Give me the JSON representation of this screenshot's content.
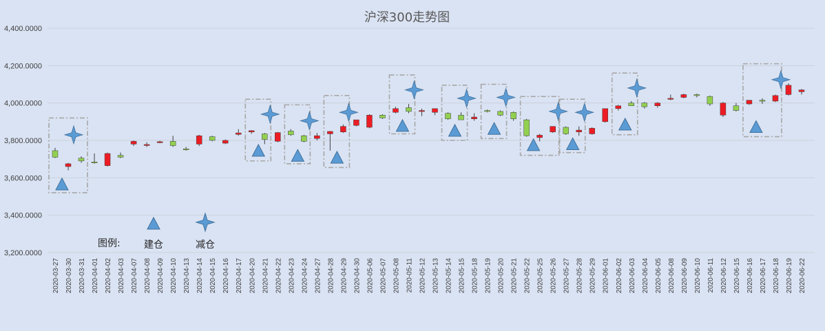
{
  "chart_data": {
    "type": "candlestick",
    "title": "沪深300走势图",
    "xlabel": "",
    "ylabel": "",
    "ylim": [
      3200,
      4400
    ],
    "yticks": [
      "3,200.0000",
      "3,400.0000",
      "3,600.0000",
      "3,800.0000",
      "4,000.0000",
      "4,200.0000",
      "4,400.0000"
    ],
    "grid": "horizontal",
    "colors": {
      "up": "#ed1c24",
      "down": "#92d050",
      "line": "#404040",
      "marker": "#5b9bd5",
      "box": "#a6a6a6"
    },
    "categories": [
      "2020-03-27",
      "2020-03-30",
      "2020-03-31",
      "2020-04-01",
      "2020-04-02",
      "2020-04-03",
      "2020-04-07",
      "2020-04-08",
      "2020-04-09",
      "2020-04-10",
      "2020-04-13",
      "2020-04-14",
      "2020-04-15",
      "2020-04-16",
      "2020-04-17",
      "2020-04-20",
      "2020-04-21",
      "2020-04-22",
      "2020-04-23",
      "2020-04-24",
      "2020-04-27",
      "2020-04-28",
      "2020-04-29",
      "2020-04-30",
      "2020-05-06",
      "2020-05-07",
      "2020-05-08",
      "2020-05-11",
      "2020-05-12",
      "2020-05-13",
      "2020-05-14",
      "2020-05-15",
      "2020-05-18",
      "2020-05-19",
      "2020-05-20",
      "2020-05-21",
      "2020-05-22",
      "2020-05-25",
      "2020-05-26",
      "2020-05-27",
      "2020-05-28",
      "2020-05-29",
      "2020-06-01",
      "2020-06-02",
      "2020-06-03",
      "2020-06-04",
      "2020-06-05",
      "2020-06-08",
      "2020-06-09",
      "2020-06-10",
      "2020-06-11",
      "2020-06-12",
      "2020-06-15",
      "2020-06-16",
      "2020-06-17",
      "2020-06-18",
      "2020-06-19",
      "2020-06-22"
    ],
    "ohlc": [
      [
        3745,
        3760,
        3705,
        3710
      ],
      [
        3660,
        3680,
        3640,
        3675
      ],
      [
        3705,
        3715,
        3680,
        3690
      ],
      [
        3685,
        3730,
        3675,
        3680
      ],
      [
        3665,
        3735,
        3660,
        3730
      ],
      [
        3720,
        3735,
        3705,
        3710
      ],
      [
        3780,
        3800,
        3770,
        3795
      ],
      [
        3775,
        3790,
        3765,
        3778
      ],
      [
        3790,
        3798,
        3785,
        3793
      ],
      [
        3795,
        3825,
        3765,
        3772
      ],
      [
        3755,
        3765,
        3745,
        3752
      ],
      [
        3780,
        3830,
        3770,
        3825
      ],
      [
        3820,
        3825,
        3795,
        3800
      ],
      [
        3785,
        3805,
        3780,
        3800
      ],
      [
        3832,
        3860,
        3825,
        3840
      ],
      [
        3845,
        3855,
        3835,
        3852
      ],
      [
        3835,
        3840,
        3780,
        3805
      ],
      [
        3795,
        3845,
        3790,
        3842
      ],
      [
        3850,
        3860,
        3825,
        3830
      ],
      [
        3825,
        3830,
        3790,
        3795
      ],
      [
        3810,
        3840,
        3800,
        3825
      ],
      [
        3835,
        3850,
        3745,
        3848
      ],
      [
        3845,
        3885,
        3840,
        3875
      ],
      [
        3880,
        3910,
        3875,
        3910
      ],
      [
        3870,
        3940,
        3865,
        3935
      ],
      [
        3935,
        3940,
        3915,
        3920
      ],
      [
        3950,
        3980,
        3945,
        3970
      ],
      [
        3975,
        3995,
        3945,
        3955
      ],
      [
        3955,
        3970,
        3930,
        3960
      ],
      [
        3950,
        3970,
        3935,
        3970
      ],
      [
        3945,
        3950,
        3910,
        3915
      ],
      [
        3935,
        3950,
        3910,
        3910
      ],
      [
        3915,
        3945,
        3905,
        3925
      ],
      [
        3960,
        3965,
        3950,
        3955
      ],
      [
        3955,
        3960,
        3930,
        3935
      ],
      [
        3950,
        3955,
        3905,
        3915
      ],
      [
        3910,
        3915,
        3820,
        3825
      ],
      [
        3815,
        3835,
        3795,
        3828
      ],
      [
        3845,
        3875,
        3840,
        3875
      ],
      [
        3870,
        3875,
        3830,
        3835
      ],
      [
        3845,
        3875,
        3825,
        3855
      ],
      [
        3835,
        3870,
        3830,
        3865
      ],
      [
        3900,
        3970,
        3895,
        3970
      ],
      [
        3970,
        3990,
        3960,
        3985
      ],
      [
        4000,
        4010,
        3985,
        3985
      ],
      [
        4000,
        4005,
        3970,
        3980
      ],
      [
        3985,
        4005,
        3975,
        4000
      ],
      [
        4020,
        4045,
        4015,
        4025
      ],
      [
        4030,
        4050,
        4025,
        4045
      ],
      [
        4045,
        4050,
        4030,
        4040
      ],
      [
        4035,
        4040,
        3985,
        3995
      ],
      [
        3935,
        4005,
        3925,
        4000
      ],
      [
        3985,
        4000,
        3955,
        3960
      ],
      [
        3995,
        4015,
        3990,
        4015
      ],
      [
        4015,
        4025,
        3995,
        4010
      ],
      [
        4010,
        4045,
        4005,
        4040
      ],
      [
        4045,
        4105,
        4040,
        4095
      ],
      [
        4060,
        4075,
        4045,
        4070
      ]
    ],
    "build_markers": [
      {
        "x": "2020-03-27",
        "y": 3565
      },
      {
        "x": "2020-04-20",
        "y": 3745
      },
      {
        "x": "2020-04-23",
        "y": 3718
      },
      {
        "x": "2020-04-28",
        "y": 3708
      },
      {
        "x": "2020-05-08",
        "y": 3878
      },
      {
        "x": "2020-05-14",
        "y": 3852
      },
      {
        "x": "2020-05-19",
        "y": 3862
      },
      {
        "x": "2020-05-22",
        "y": 3775
      },
      {
        "x": "2020-05-27",
        "y": 3780
      },
      {
        "x": "2020-06-02",
        "y": 3885
      },
      {
        "x": "2020-06-16",
        "y": 3872
      }
    ],
    "reduce_markers": [
      {
        "x": "2020-03-30",
        "y": 3830
      },
      {
        "x": "2020-04-21",
        "y": 3940
      },
      {
        "x": "2020-04-24",
        "y": 3905
      },
      {
        "x": "2020-04-29",
        "y": 3950
      },
      {
        "x": "2020-05-11",
        "y": 4070
      },
      {
        "x": "2020-05-15",
        "y": 4025
      },
      {
        "x": "2020-05-20",
        "y": 4030
      },
      {
        "x": "2020-05-26",
        "y": 3955
      },
      {
        "x": "2020-05-28",
        "y": 3950
      },
      {
        "x": "2020-06-03",
        "y": 4080
      },
      {
        "x": "2020-06-18",
        "y": 4125
      }
    ],
    "highlight_boxes": [
      {
        "from": "2020-03-27",
        "to": "2020-03-31",
        "y0": 3520,
        "y1": 3920
      },
      {
        "from": "2020-04-20",
        "to": "2020-04-21",
        "y0": 3690,
        "y1": 4020
      },
      {
        "from": "2020-04-23",
        "to": "2020-04-24",
        "y0": 3675,
        "y1": 3990
      },
      {
        "from": "2020-04-28",
        "to": "2020-04-29",
        "y0": 3655,
        "y1": 4040
      },
      {
        "from": "2020-05-08",
        "to": "2020-05-11",
        "y0": 3835,
        "y1": 4150
      },
      {
        "from": "2020-05-14",
        "to": "2020-05-15",
        "y0": 3800,
        "y1": 4095
      },
      {
        "from": "2020-05-19",
        "to": "2020-05-20",
        "y0": 3810,
        "y1": 4100
      },
      {
        "from": "2020-05-22",
        "to": "2020-05-26",
        "y0": 3720,
        "y1": 4035
      },
      {
        "from": "2020-05-27",
        "to": "2020-05-28",
        "y0": 3735,
        "y1": 4020
      },
      {
        "from": "2020-06-02",
        "to": "2020-06-03",
        "y0": 3830,
        "y1": 4160
      },
      {
        "from": "2020-06-16",
        "to": "2020-06-18",
        "y0": 3820,
        "y1": 4210
      }
    ],
    "legend": {
      "label": "图例:",
      "build": "建仓",
      "reduce": "减仓"
    }
  }
}
